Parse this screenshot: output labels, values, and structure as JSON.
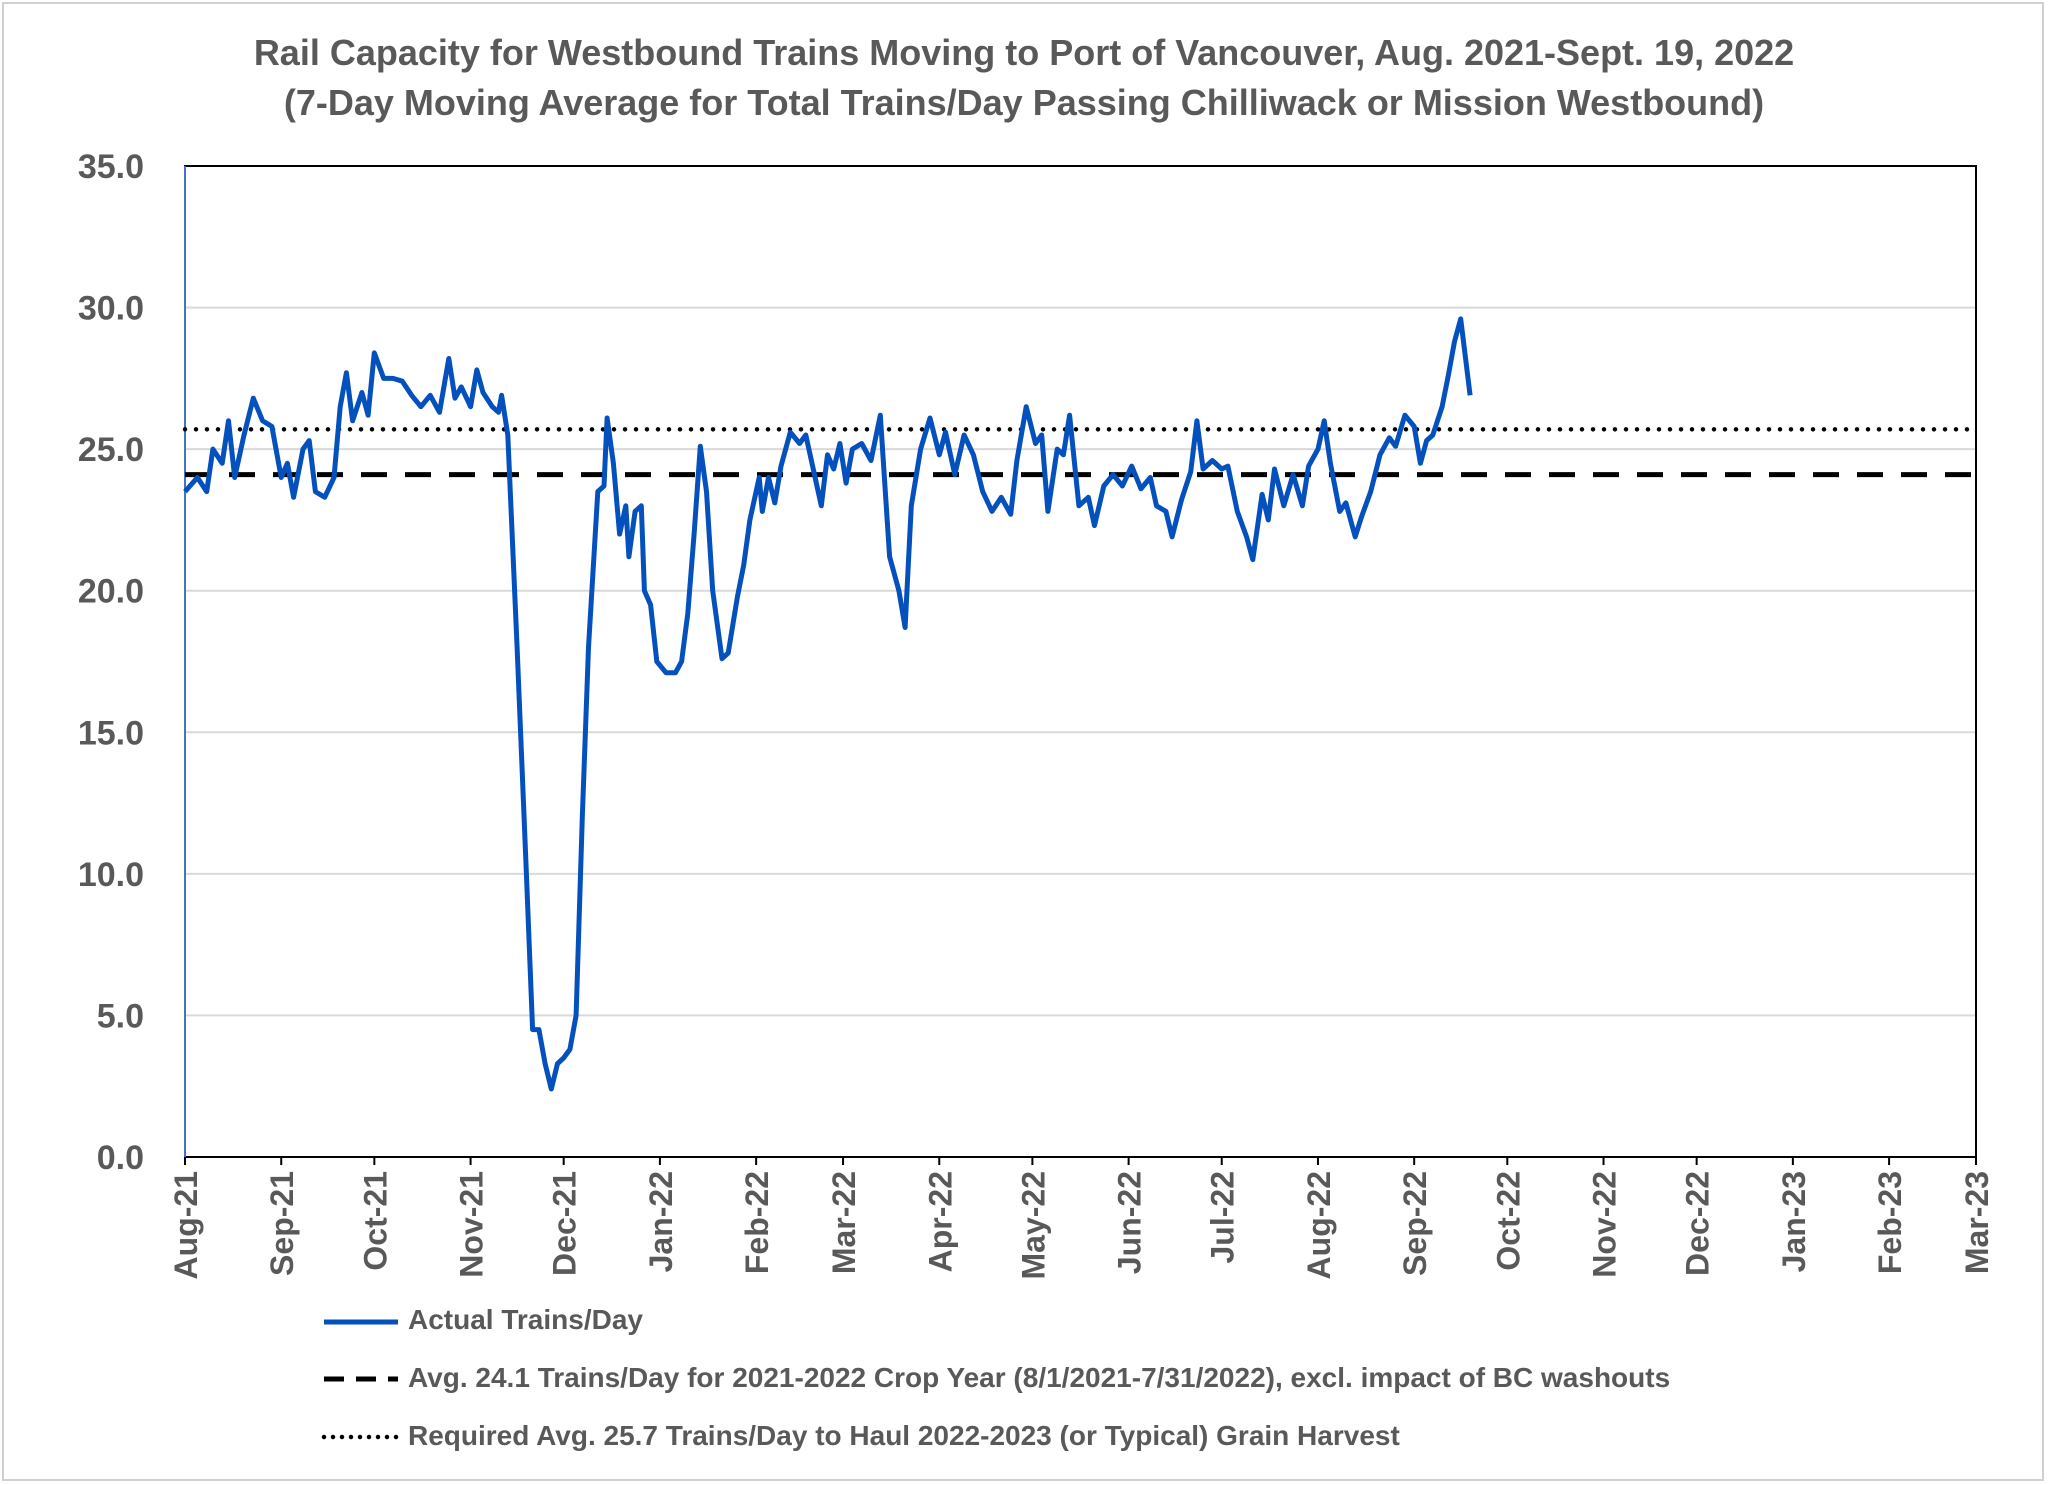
{
  "chart_data": {
    "type": "line",
    "title": "Rail Capacity for Westbound Trains Moving to Port of Vancouver, Aug. 2021-Sept. 19, 2022",
    "subtitle": "(7-Day Moving Average for Total Trains/Day Passing Chilliwack or Mission Westbound)",
    "xlabel": "",
    "ylabel": "",
    "ylim": [
      0,
      35
    ],
    "xlim": [
      "2021-08-01",
      "2023-03-01"
    ],
    "grid": "horizontal",
    "legend_position": "bottom",
    "y_ticks": [
      "0.0",
      "5.0",
      "10.0",
      "15.0",
      "20.0",
      "25.0",
      "30.0",
      "35.0"
    ],
    "x_ticks": [
      {
        "date": "2021-08-01",
        "label": "Aug-21"
      },
      {
        "date": "2021-09-01",
        "label": "Sep-21"
      },
      {
        "date": "2021-10-01",
        "label": "Oct-21"
      },
      {
        "date": "2021-11-01",
        "label": "Nov-21"
      },
      {
        "date": "2021-12-01",
        "label": "Dec-21"
      },
      {
        "date": "2022-01-01",
        "label": "Jan-22"
      },
      {
        "date": "2022-02-01",
        "label": "Feb-22"
      },
      {
        "date": "2022-03-01",
        "label": "Mar-22"
      },
      {
        "date": "2022-04-01",
        "label": "Apr-22"
      },
      {
        "date": "2022-05-01",
        "label": "May-22"
      },
      {
        "date": "2022-06-01",
        "label": "Jun-22"
      },
      {
        "date": "2022-07-01",
        "label": "Jul-22"
      },
      {
        "date": "2022-08-01",
        "label": "Aug-22"
      },
      {
        "date": "2022-09-01",
        "label": "Sep-22"
      },
      {
        "date": "2022-10-01",
        "label": "Oct-22"
      },
      {
        "date": "2022-11-01",
        "label": "Nov-22"
      },
      {
        "date": "2022-12-01",
        "label": "Dec-22"
      },
      {
        "date": "2023-01-01",
        "label": "Jan-23"
      },
      {
        "date": "2023-02-01",
        "label": "Feb-23"
      },
      {
        "date": "2023-03-01",
        "label": "Mar-23"
      }
    ],
    "series": [
      {
        "name": "Actual Trains/Day",
        "color": "#0451BE",
        "style": "solid",
        "x": [
          "2021-08-01",
          "2021-08-05",
          "2021-08-08",
          "2021-08-10",
          "2021-08-13",
          "2021-08-15",
          "2021-08-17",
          "2021-08-20",
          "2021-08-23",
          "2021-08-26",
          "2021-08-29",
          "2021-09-01",
          "2021-09-03",
          "2021-09-05",
          "2021-09-08",
          "2021-09-10",
          "2021-09-12",
          "2021-09-15",
          "2021-09-18",
          "2021-09-20",
          "2021-09-22",
          "2021-09-24",
          "2021-09-27",
          "2021-09-29",
          "2021-10-01",
          "2021-10-04",
          "2021-10-07",
          "2021-10-10",
          "2021-10-13",
          "2021-10-16",
          "2021-10-19",
          "2021-10-22",
          "2021-10-25",
          "2021-10-27",
          "2021-10-29",
          "2021-11-01",
          "2021-11-03",
          "2021-11-05",
          "2021-11-08",
          "2021-11-10",
          "2021-11-11",
          "2021-11-13",
          "2021-11-16",
          "2021-11-19",
          "2021-11-21",
          "2021-11-23",
          "2021-11-25",
          "2021-11-27",
          "2021-11-29",
          "2021-12-01",
          "2021-12-03",
          "2021-12-05",
          "2021-12-07",
          "2021-12-09",
          "2021-12-12",
          "2021-12-14",
          "2021-12-15",
          "2021-12-17",
          "2021-12-19",
          "2021-12-21",
          "2021-12-22",
          "2021-12-24",
          "2021-12-26",
          "2021-12-27",
          "2021-12-29",
          "2021-12-31",
          "2022-01-03",
          "2022-01-06",
          "2022-01-08",
          "2022-01-10",
          "2022-01-12",
          "2022-01-14",
          "2022-01-16",
          "2022-01-18",
          "2022-01-21",
          "2022-01-23",
          "2022-01-26",
          "2022-01-28",
          "2022-01-30",
          "2022-02-02",
          "2022-02-03",
          "2022-02-05",
          "2022-02-07",
          "2022-02-09",
          "2022-02-12",
          "2022-02-15",
          "2022-02-17",
          "2022-02-19",
          "2022-02-22",
          "2022-02-24",
          "2022-02-26",
          "2022-02-28",
          "2022-03-02",
          "2022-03-04",
          "2022-03-07",
          "2022-03-10",
          "2022-03-13",
          "2022-03-16",
          "2022-03-19",
          "2022-03-21",
          "2022-03-23",
          "2022-03-26",
          "2022-03-29",
          "2022-04-01",
          "2022-04-03",
          "2022-04-06",
          "2022-04-09",
          "2022-04-12",
          "2022-04-15",
          "2022-04-18",
          "2022-04-21",
          "2022-04-24",
          "2022-04-26",
          "2022-04-29",
          "2022-05-02",
          "2022-05-04",
          "2022-05-06",
          "2022-05-09",
          "2022-05-11",
          "2022-05-13",
          "2022-05-16",
          "2022-05-19",
          "2022-05-21",
          "2022-05-24",
          "2022-05-27",
          "2022-05-30",
          "2022-06-02",
          "2022-06-05",
          "2022-06-08",
          "2022-06-10",
          "2022-06-13",
          "2022-06-15",
          "2022-06-18",
          "2022-06-21",
          "2022-06-23",
          "2022-06-25",
          "2022-06-28",
          "2022-07-01",
          "2022-07-03",
          "2022-07-06",
          "2022-07-09",
          "2022-07-11",
          "2022-07-14",
          "2022-07-16",
          "2022-07-18",
          "2022-07-21",
          "2022-07-24",
          "2022-07-27",
          "2022-07-29",
          "2022-08-01",
          "2022-08-03",
          "2022-08-05",
          "2022-08-08",
          "2022-08-10",
          "2022-08-13",
          "2022-08-15",
          "2022-08-18",
          "2022-08-21",
          "2022-08-24",
          "2022-08-26",
          "2022-08-29",
          "2022-09-01",
          "2022-09-03",
          "2022-09-05",
          "2022-09-07",
          "2022-09-10",
          "2022-09-12",
          "2022-09-14",
          "2022-09-16",
          "2022-09-19"
        ],
        "values": [
          23.5,
          24,
          23.5,
          25,
          24.5,
          26,
          24,
          25.5,
          26.8,
          26,
          25.8,
          24,
          24.5,
          23.3,
          25,
          25.3,
          23.5,
          23.3,
          24,
          26.5,
          27.7,
          26,
          27,
          26.2,
          28.4,
          27.5,
          27.5,
          27.4,
          26.9,
          26.5,
          26.9,
          26.3,
          28.2,
          26.8,
          27.2,
          26.5,
          27.8,
          27,
          26.5,
          26.3,
          26.9,
          25.5,
          18,
          10,
          4.5,
          4.5,
          3.3,
          2.4,
          3.3,
          3.5,
          3.8,
          5,
          12,
          18,
          23.5,
          23.7,
          26.1,
          24.5,
          22,
          23,
          21.2,
          22.8,
          23,
          20,
          19.5,
          17.5,
          17.1,
          17.1,
          17.5,
          19.2,
          22,
          25.1,
          23.5,
          20,
          17.6,
          17.8,
          19.8,
          20.9,
          22.5,
          24,
          22.8,
          24,
          23.1,
          24.4,
          25.6,
          25.2,
          25.5,
          24.5,
          23,
          24.8,
          24.3,
          25.2,
          23.8,
          25,
          25.2,
          24.6,
          26.2,
          21.2,
          20,
          18.7,
          23,
          25,
          26.1,
          24.8,
          25.6,
          24.1,
          25.5,
          24.8,
          23.5,
          22.8,
          23.3,
          22.7,
          24.6,
          26.5,
          25.2,
          25.5,
          22.8,
          25,
          24.8,
          26.2,
          23,
          23.3,
          22.3,
          23.7,
          24.1,
          23.7,
          24.4,
          23.6,
          24,
          23,
          22.8,
          21.9,
          23.2,
          24.2,
          26,
          24.3,
          24.6,
          24.3,
          24.4,
          22.8,
          21.9,
          21.1,
          23.4,
          22.5,
          24.3,
          23,
          24.1,
          23,
          24.4,
          25,
          26,
          24.5,
          22.8,
          23.1,
          21.9,
          22.6,
          23.5,
          24.8,
          25.4,
          25.1,
          26.2,
          25.8,
          24.5,
          25.3,
          25.5,
          26.5,
          27.6,
          28.8,
          29.6,
          26.9
        ]
      },
      {
        "name": "Avg. 24.1 Trains/Day for 2021-2022 Crop Year (8/1/2021-7/31/2022), excl. impact of BC washouts",
        "color": "#000000",
        "style": "dashed",
        "value": 24.1
      },
      {
        "name": "Required Avg. 25.7 Trains/Day to Haul 2022-2023 (or Typical) Grain Harvest",
        "color": "#000000",
        "style": "dotted",
        "value": 25.7
      }
    ]
  }
}
